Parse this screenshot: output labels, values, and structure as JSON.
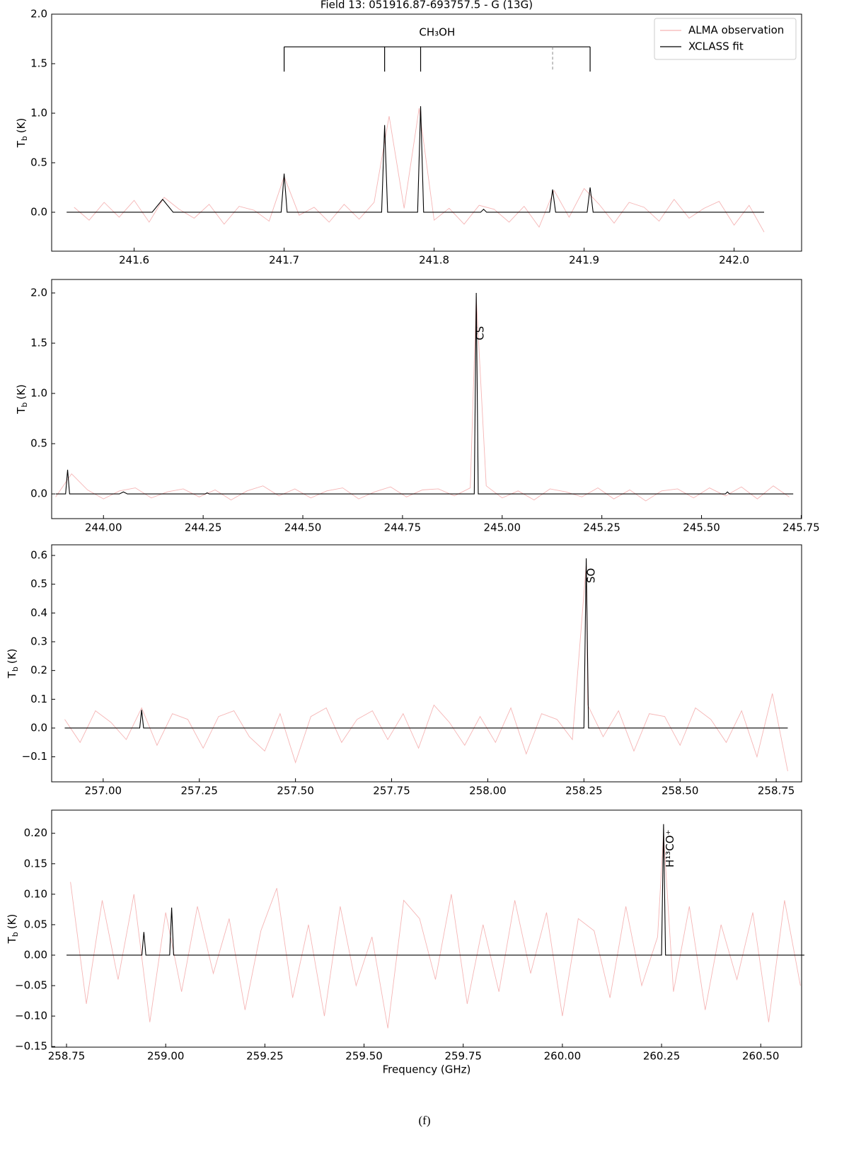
{
  "chart_data": [
    {
      "type": "line",
      "title": "Field 13: 051916.87-693757.5 - G (13G)",
      "ylabel": {
        "symbol": "T",
        "subscript": "b",
        "unit": "(K)"
      },
      "xlim": [
        241.545,
        242.045
      ],
      "ylim": [
        -0.393,
        2.0
      ],
      "xticks": [
        241.6,
        241.7,
        241.8,
        241.9,
        {
          "value": 242,
          "label": "242.0"
        }
      ],
      "yticks": [
        {
          "value": 0,
          "label": "0.0"
        },
        0.5,
        {
          "value": 1,
          "label": "1.0"
        },
        1.5,
        {
          "value": 2,
          "label": "2.0"
        }
      ],
      "legend": "upper right",
      "series": [
        {
          "name": "ALMA observation",
          "color": "#f5b5b5",
          "x": [
            241.56,
            241.57,
            241.58,
            241.59,
            241.6,
            241.61,
            241.62,
            241.63,
            241.64,
            241.65,
            241.66,
            241.67,
            241.68,
            241.69,
            241.7,
            241.71,
            241.72,
            241.73,
            241.74,
            241.75,
            241.76,
            241.77,
            241.78,
            241.79,
            241.8,
            241.81,
            241.82,
            241.83,
            241.84,
            241.85,
            241.86,
            241.87,
            241.88,
            241.89,
            241.9,
            241.91,
            241.92,
            241.93,
            241.94,
            241.95,
            241.96,
            241.97,
            241.98,
            241.99,
            242.0,
            242.01,
            242.02
          ],
          "values": [
            0.05,
            -0.08,
            0.1,
            -0.05,
            0.12,
            -0.1,
            0.15,
            0.03,
            -0.06,
            0.08,
            -0.12,
            0.06,
            0.02,
            -0.09,
            0.36,
            -0.03,
            0.05,
            -0.1,
            0.08,
            -0.07,
            0.1,
            0.97,
            0.04,
            1.05,
            -0.08,
            0.04,
            -0.12,
            0.07,
            0.03,
            -0.1,
            0.06,
            -0.15,
            0.22,
            -0.05,
            0.24,
            0.08,
            -0.11,
            0.1,
            0.05,
            -0.09,
            0.13,
            -0.06,
            0.04,
            0.11,
            -0.13,
            0.07,
            -0.2
          ]
        },
        {
          "name": "XCLASS fit",
          "color": "#000000",
          "x": [
            241.555,
            241.612,
            241.619,
            241.626,
            241.698,
            241.7,
            241.702,
            241.765,
            241.767,
            241.769,
            241.789,
            241.791,
            241.793,
            241.831,
            241.833,
            241.835,
            241.877,
            241.879,
            241.881,
            241.902,
            241.904,
            241.906,
            242.02
          ],
          "values": [
            0,
            0,
            0.13,
            0,
            0,
            0.39,
            0,
            0,
            0.88,
            0,
            0,
            1.07,
            0,
            0,
            0.03,
            0,
            0,
            0.23,
            0,
            0,
            0.25,
            0,
            0
          ]
        }
      ],
      "bracket": {
        "label": "CH₃OH",
        "level": 1.67,
        "foot": 1.42,
        "lines": [
          241.7,
          241.767,
          241.791,
          241.904
        ],
        "dashed": [
          241.879
        ]
      }
    },
    {
      "type": "line",
      "ylabel": {
        "symbol": "T",
        "subscript": "b",
        "unit": "(K)"
      },
      "xlim": [
        243.87,
        245.751
      ],
      "ylim": [
        -0.246,
        2.134
      ],
      "xticks": [
        {
          "value": 244,
          "label": "244.00"
        },
        244.25,
        {
          "value": 244.5,
          "label": "244.50"
        },
        244.75,
        {
          "value": 245,
          "label": "245.00"
        },
        245.25,
        {
          "value": 245.5,
          "label": "245.50"
        },
        245.75
      ],
      "yticks": [
        {
          "value": 0,
          "label": "0.0"
        },
        0.5,
        {
          "value": 1,
          "label": "1.0"
        },
        1.5,
        {
          "value": 2,
          "label": "2.0"
        }
      ],
      "series": [
        {
          "color": "#f5b5b5",
          "x": [
            243.88,
            243.92,
            243.96,
            244.0,
            244.04,
            244.08,
            244.12,
            244.16,
            244.2,
            244.24,
            244.28,
            244.32,
            244.36,
            244.4,
            244.44,
            244.48,
            244.52,
            244.56,
            244.6,
            244.64,
            244.68,
            244.72,
            244.76,
            244.8,
            244.84,
            244.88,
            244.92,
            244.935,
            244.96,
            245.0,
            245.04,
            245.08,
            245.12,
            245.16,
            245.2,
            245.24,
            245.28,
            245.32,
            245.36,
            245.4,
            245.44,
            245.48,
            245.52,
            245.56,
            245.6,
            245.64,
            245.68,
            245.72
          ],
          "values": [
            -0.03,
            0.2,
            0.04,
            -0.05,
            0.03,
            0.06,
            -0.04,
            0.02,
            0.05,
            -0.03,
            0.04,
            -0.06,
            0.03,
            0.08,
            -0.02,
            0.05,
            -0.04,
            0.03,
            0.06,
            -0.05,
            0.02,
            0.07,
            -0.03,
            0.04,
            0.05,
            -0.02,
            0.06,
            1.96,
            0.08,
            -0.04,
            0.03,
            -0.06,
            0.05,
            0.02,
            -0.03,
            0.06,
            -0.05,
            0.04,
            -0.07,
            0.03,
            0.05,
            -0.04,
            0.06,
            -0.02,
            0.07,
            -0.05,
            0.08,
            -0.03
          ]
        },
        {
          "color": "#000000",
          "x": [
            243.88,
            243.905,
            243.91,
            243.915,
            244.04,
            244.05,
            244.06,
            244.255,
            244.26,
            244.265,
            244.93,
            244.935,
            244.94,
            245.56,
            245.565,
            245.57,
            245.73
          ],
          "values": [
            0,
            0,
            0.24,
            0,
            0,
            0.02,
            0,
            0,
            0.01,
            0,
            0,
            2.0,
            0,
            0,
            0.02,
            0,
            0
          ]
        }
      ],
      "annotations": [
        {
          "text": "CS",
          "x": 244.945,
          "y": 1.6
        }
      ]
    },
    {
      "type": "line",
      "ylabel": {
        "symbol": "T",
        "subscript": "b",
        "unit": "(K)"
      },
      "xlim": [
        256.866,
        258.816
      ],
      "ylim": [
        -0.187,
        0.637
      ],
      "xticks": [
        {
          "value": 257,
          "label": "257.00"
        },
        257.25,
        {
          "value": 257.5,
          "label": "257.50"
        },
        257.75,
        {
          "value": 258,
          "label": "258.00"
        },
        258.25,
        {
          "value": 258.5,
          "label": "258.50"
        },
        258.75
      ],
      "yticks": [
        {
          "value": -0.1,
          "label": "−0.1"
        },
        {
          "value": 0,
          "label": "0.0"
        },
        0.1,
        0.2,
        0.3,
        0.4,
        0.5,
        0.6
      ],
      "series": [
        {
          "color": "#f5b5b5",
          "x": [
            256.9,
            256.94,
            256.98,
            257.02,
            257.06,
            257.1,
            257.14,
            257.18,
            257.22,
            257.26,
            257.3,
            257.34,
            257.38,
            257.42,
            257.46,
            257.5,
            257.54,
            257.58,
            257.62,
            257.66,
            257.7,
            257.74,
            257.78,
            257.82,
            257.86,
            257.9,
            257.94,
            257.98,
            258.02,
            258.06,
            258.1,
            258.14,
            258.18,
            258.22,
            258.256,
            258.26,
            258.3,
            258.34,
            258.38,
            258.42,
            258.46,
            258.5,
            258.54,
            258.58,
            258.62,
            258.66,
            258.7,
            258.74,
            258.78
          ],
          "values": [
            0.03,
            -0.05,
            0.06,
            0.02,
            -0.04,
            0.07,
            -0.06,
            0.05,
            0.03,
            -0.07,
            0.04,
            0.06,
            -0.03,
            -0.08,
            0.05,
            -0.12,
            0.04,
            0.07,
            -0.05,
            0.03,
            0.06,
            -0.04,
            0.05,
            -0.07,
            0.08,
            0.02,
            -0.06,
            0.04,
            -0.05,
            0.07,
            -0.09,
            0.05,
            0.03,
            -0.04,
            0.57,
            0.08,
            -0.03,
            0.06,
            -0.08,
            0.05,
            0.04,
            -0.06,
            0.07,
            0.03,
            -0.05,
            0.06,
            -0.1,
            0.12,
            -0.15
          ]
        },
        {
          "color": "#000000",
          "x": [
            256.9,
            257.095,
            257.1,
            257.105,
            258.25,
            258.256,
            258.262,
            258.78
          ],
          "values": [
            0,
            0,
            0.063,
            0,
            0,
            0.59,
            0,
            0
          ]
        }
      ],
      "annotations": [
        {
          "text": "SO",
          "x": 258.27,
          "y": 0.53
        }
      ]
    },
    {
      "type": "line",
      "ylabel": {
        "symbol": "T",
        "subscript": "b",
        "unit": "(K)"
      },
      "xlabel": "Frequency (GHz)",
      "xlim": [
        258.7125,
        260.603
      ],
      "ylim": [
        -0.151,
        0.238
      ],
      "xticks": [
        258.75,
        {
          "value": 259,
          "label": "259.00"
        },
        259.25,
        {
          "value": 259.5,
          "label": "259.50"
        },
        259.75,
        {
          "value": 260,
          "label": "260.00"
        },
        260.25,
        {
          "value": 260.5,
          "label": "260.50"
        }
      ],
      "yticks": [
        {
          "value": -0.15,
          "label": "−0.15"
        },
        {
          "value": -0.1,
          "label": "−0.10"
        },
        {
          "value": -0.05,
          "label": "−0.05"
        },
        {
          "value": 0,
          "label": "0.00"
        },
        0.05,
        {
          "value": 0.1,
          "label": "0.10"
        },
        0.15,
        {
          "value": 0.2,
          "label": "0.20"
        }
      ],
      "series": [
        {
          "color": "#f5b5b5",
          "x": [
            258.76,
            258.8,
            258.84,
            258.88,
            258.92,
            258.96,
            259.0,
            259.04,
            259.08,
            259.12,
            259.16,
            259.2,
            259.24,
            259.28,
            259.32,
            259.36,
            259.4,
            259.44,
            259.48,
            259.52,
            259.56,
            259.6,
            259.64,
            259.68,
            259.72,
            259.76,
            259.8,
            259.84,
            259.88,
            259.92,
            259.96,
            260.0,
            260.04,
            260.08,
            260.12,
            260.16,
            260.2,
            260.24,
            260.255,
            260.28,
            260.32,
            260.36,
            260.4,
            260.44,
            260.48,
            260.52,
            260.56,
            260.6
          ],
          "values": [
            0.12,
            -0.08,
            0.09,
            -0.04,
            0.1,
            -0.11,
            0.07,
            -0.06,
            0.08,
            -0.03,
            0.06,
            -0.09,
            0.04,
            0.11,
            -0.07,
            0.05,
            -0.1,
            0.08,
            -0.05,
            0.03,
            -0.12,
            0.09,
            0.06,
            -0.04,
            0.1,
            -0.08,
            0.05,
            -0.06,
            0.09,
            -0.03,
            0.07,
            -0.1,
            0.06,
            0.04,
            -0.07,
            0.08,
            -0.05,
            0.03,
            0.2,
            -0.06,
            0.08,
            -0.09,
            0.05,
            -0.04,
            0.07,
            -0.11,
            0.09,
            -0.05
          ]
        },
        {
          "color": "#000000",
          "x": [
            258.75,
            258.94,
            258.945,
            258.95,
            259.01,
            259.015,
            259.02,
            260.25,
            260.255,
            260.26,
            260.61
          ],
          "values": [
            0,
            0,
            0.038,
            0,
            0,
            0.078,
            0,
            0,
            0.215,
            0,
            0
          ]
        }
      ],
      "annotations": [
        {
          "text": "H¹³CO⁺",
          "x": 260.272,
          "y": 0.175
        }
      ]
    }
  ],
  "caption": "(f)"
}
